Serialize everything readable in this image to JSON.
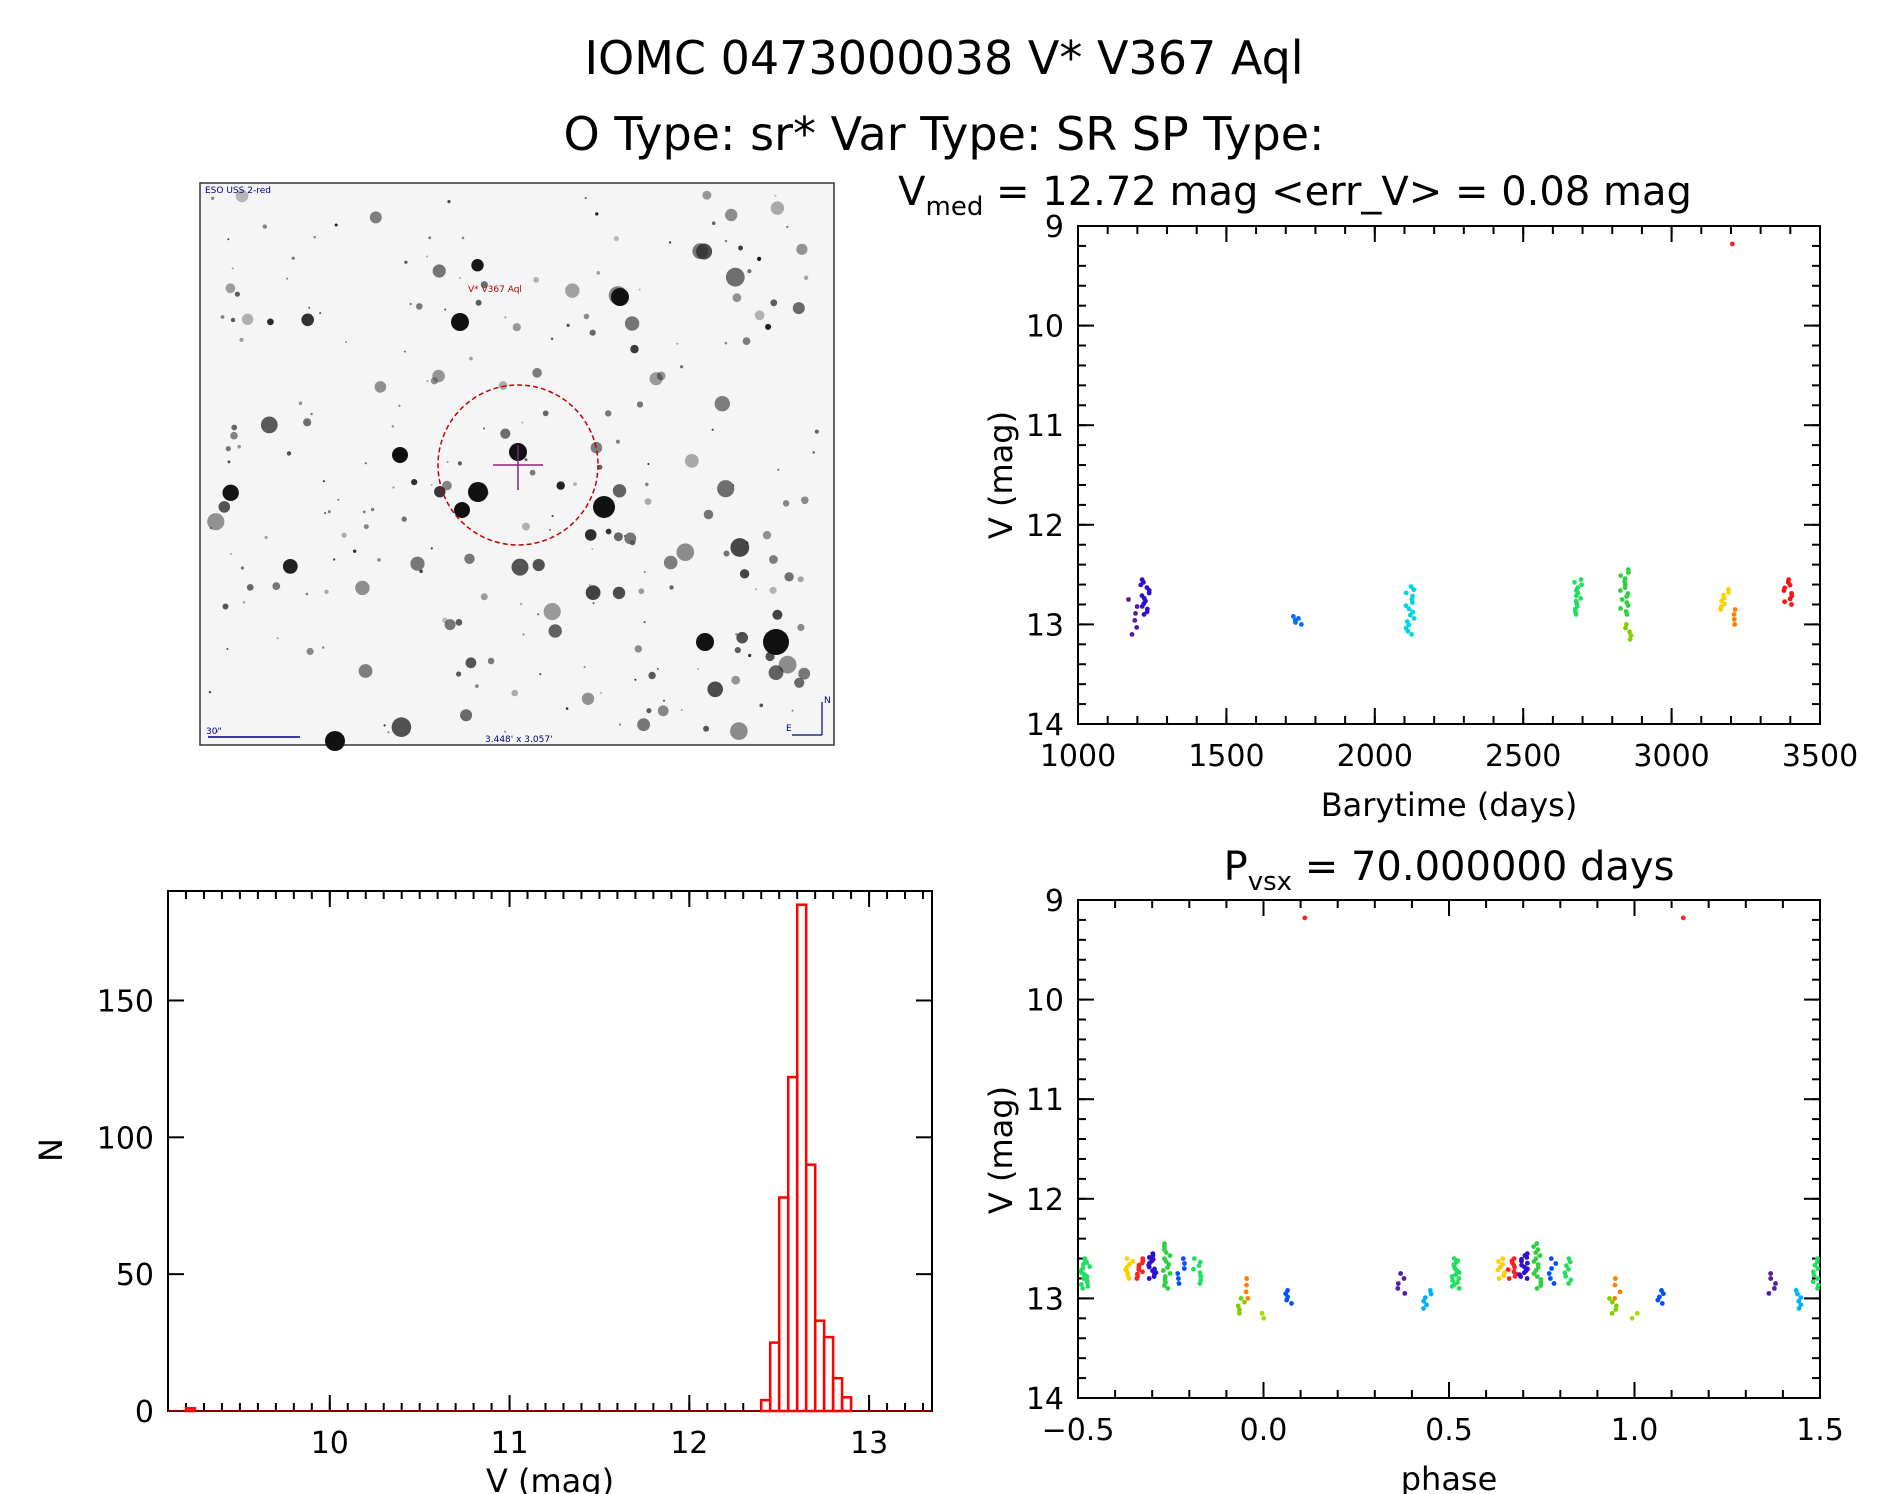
{
  "header": {
    "line1": "IOMC 0473000038    V* V367 Aql",
    "line2": "O Type: sr*  Var Type: SR  SP Type:"
  },
  "image_panel": {
    "survey_label": "ESO USS 2-red",
    "target_label": "V* V367 Aql",
    "scale_label": "30\"",
    "field_label": "3.448' x 3.057'",
    "north_label": "N",
    "east_label": "E"
  },
  "colors": {
    "histogram": "#ff0000",
    "target_circle": "#c00000",
    "crosshair": "#8a2080",
    "overlay_text": "#000080",
    "seasons": [
      "#5a1aa0",
      "#0050ff",
      "#00b0ff",
      "#00e070",
      "#30d040",
      "#ffd000",
      "#ff8000",
      "#ff2020"
    ]
  },
  "chart_data": [
    {
      "id": "light_curve",
      "type": "scatter",
      "title": "V_med = 12.72 mag <err_V> = 0.08 mag",
      "title_parts": {
        "v": "V",
        "v_sub": "med",
        "rest": " = 12.72 mag <err_V> = 0.08 mag"
      },
      "xlabel": "Barytime (days)",
      "ylabel": "V (mag)",
      "xlim": [
        1000,
        3500
      ],
      "ylim": [
        9,
        14
      ],
      "y_inverted": true,
      "xticks": [
        "1000",
        "1500",
        "2000",
        "2500",
        "3000",
        "3500"
      ],
      "yticks": [
        "9",
        "10",
        "11",
        "12",
        "13",
        "14"
      ],
      "groups": [
        {
          "x": 1185,
          "v_min": 12.75,
          "v_max": 13.1,
          "color": "#5a1aa0",
          "n": 6
        },
        {
          "x": 1225,
          "v_min": 12.55,
          "v_max": 12.9,
          "color": "#3010d0",
          "n": 14
        },
        {
          "x": 1740,
          "v_min": 12.92,
          "v_max": 13.0,
          "color": "#0070ff",
          "n": 5
        },
        {
          "x": 2120,
          "v_min": 12.62,
          "v_max": 13.1,
          "color": "#00d8e0",
          "n": 16
        },
        {
          "x": 2685,
          "v_min": 12.55,
          "v_max": 12.9,
          "color": "#20e060",
          "n": 14
        },
        {
          "x": 2840,
          "v_min": 12.45,
          "v_max": 12.9,
          "color": "#30d040",
          "n": 16
        },
        {
          "x": 2850,
          "v_min": 13.0,
          "v_max": 13.15,
          "color": "#80d000",
          "n": 5
        },
        {
          "x": 3180,
          "v_min": 12.65,
          "v_max": 12.85,
          "color": "#ffd000",
          "n": 8
        },
        {
          "x": 3200,
          "v_min": 12.85,
          "v_max": 13.0,
          "color": "#ff8000",
          "n": 4
        },
        {
          "x": 3210,
          "v_min": 9.18,
          "v_max": 9.18,
          "color": "#ff2020",
          "n": 1
        },
        {
          "x": 3390,
          "v_min": 12.55,
          "v_max": 12.8,
          "color": "#ff1010",
          "n": 10
        }
      ]
    },
    {
      "id": "histogram",
      "type": "bar",
      "xlabel": "V (mag)",
      "ylabel": "N",
      "xlim": [
        9.1,
        13.35
      ],
      "ylim": [
        0,
        190
      ],
      "xticks": [
        "10",
        "11",
        "12",
        "13"
      ],
      "yticks": [
        "0",
        "50",
        "100",
        "150"
      ],
      "bin_width": 0.05,
      "bins": [
        {
          "v": 9.2,
          "n": 1
        },
        {
          "v": 12.4,
          "n": 4
        },
        {
          "v": 12.45,
          "n": 25
        },
        {
          "v": 12.5,
          "n": 78
        },
        {
          "v": 12.55,
          "n": 122
        },
        {
          "v": 12.6,
          "n": 185
        },
        {
          "v": 12.65,
          "n": 90
        },
        {
          "v": 12.7,
          "n": 33
        },
        {
          "v": 12.75,
          "n": 27
        },
        {
          "v": 12.8,
          "n": 12
        },
        {
          "v": 12.85,
          "n": 5
        }
      ]
    },
    {
      "id": "phase_curve",
      "type": "scatter",
      "title": "P_vsx = 70.000000 days",
      "title_parts": {
        "p": "P",
        "p_sub": "vsx",
        "rest": " = 70.000000 days"
      },
      "xlabel": "phase",
      "ylabel": "V (mag)",
      "xlim": [
        -0.5,
        1.5
      ],
      "ylim": [
        9,
        14
      ],
      "y_inverted": true,
      "xticks": [
        "−0.5",
        "0.0",
        "0.5",
        "1.0",
        "1.5"
      ],
      "yticks": [
        "9",
        "10",
        "11",
        "12",
        "13",
        "14"
      ],
      "groups": [
        {
          "x": -0.48,
          "v_min": 12.6,
          "v_max": 12.9,
          "color": "#20e060",
          "n": 16
        },
        {
          "x": -0.36,
          "v_min": 12.6,
          "v_max": 12.8,
          "color": "#ffd000",
          "n": 8
        },
        {
          "x": -0.33,
          "v_min": 12.6,
          "v_max": 12.8,
          "color": "#ff2020",
          "n": 10
        },
        {
          "x": -0.3,
          "v_min": 12.55,
          "v_max": 12.8,
          "color": "#3010d0",
          "n": 14
        },
        {
          "x": -0.26,
          "v_min": 12.45,
          "v_max": 12.9,
          "color": "#30d040",
          "n": 16
        },
        {
          "x": -0.22,
          "v_min": 12.6,
          "v_max": 12.85,
          "color": "#0050ff",
          "n": 6
        },
        {
          "x": -0.18,
          "v_min": 12.6,
          "v_max": 12.85,
          "color": "#20e060",
          "n": 8
        },
        {
          "x": -0.05,
          "v_min": 12.8,
          "v_max": 13.0,
          "color": "#ff8000",
          "n": 4
        },
        {
          "x": -0.06,
          "v_min": 13.0,
          "v_max": 13.15,
          "color": "#80d000",
          "n": 5
        },
        {
          "x": 0.0,
          "v_min": 13.15,
          "v_max": 13.2,
          "color": "#a0e000",
          "n": 2
        },
        {
          "x": 0.07,
          "v_min": 12.92,
          "v_max": 13.05,
          "color": "#0050ff",
          "n": 5
        },
        {
          "x": 0.12,
          "v_min": 9.18,
          "v_max": 9.18,
          "color": "#ff2020",
          "n": 1
        },
        {
          "x": 0.37,
          "v_min": 12.75,
          "v_max": 12.95,
          "color": "#5a1aa0",
          "n": 5
        },
        {
          "x": 0.44,
          "v_min": 12.92,
          "v_max": 13.1,
          "color": "#00b0ff",
          "n": 6
        },
        {
          "x": 0.52,
          "v_min": 12.6,
          "v_max": 12.9,
          "color": "#20e060",
          "n": 16
        },
        {
          "x": 0.64,
          "v_min": 12.6,
          "v_max": 12.8,
          "color": "#ffd000",
          "n": 8
        },
        {
          "x": 0.67,
          "v_min": 12.6,
          "v_max": 12.8,
          "color": "#ff2020",
          "n": 10
        },
        {
          "x": 0.7,
          "v_min": 12.55,
          "v_max": 12.8,
          "color": "#3010d0",
          "n": 14
        },
        {
          "x": 0.74,
          "v_min": 12.45,
          "v_max": 12.9,
          "color": "#30d040",
          "n": 16
        },
        {
          "x": 0.78,
          "v_min": 12.6,
          "v_max": 12.85,
          "color": "#0050ff",
          "n": 6
        },
        {
          "x": 0.82,
          "v_min": 12.6,
          "v_max": 12.85,
          "color": "#20e060",
          "n": 8
        },
        {
          "x": 0.95,
          "v_min": 12.8,
          "v_max": 13.0,
          "color": "#ff8000",
          "n": 4
        },
        {
          "x": 0.94,
          "v_min": 13.0,
          "v_max": 13.15,
          "color": "#80d000",
          "n": 5
        },
        {
          "x": 1.0,
          "v_min": 13.15,
          "v_max": 13.2,
          "color": "#a0e000",
          "n": 2
        },
        {
          "x": 1.07,
          "v_min": 12.92,
          "v_max": 13.05,
          "color": "#0050ff",
          "n": 5
        },
        {
          "x": 1.12,
          "v_min": 9.18,
          "v_max": 9.18,
          "color": "#ff2020",
          "n": 1
        },
        {
          "x": 1.37,
          "v_min": 12.75,
          "v_max": 12.95,
          "color": "#5a1aa0",
          "n": 5
        },
        {
          "x": 1.44,
          "v_min": 12.92,
          "v_max": 13.1,
          "color": "#00b0ff",
          "n": 6
        },
        {
          "x": 1.49,
          "v_min": 12.6,
          "v_max": 12.9,
          "color": "#20e060",
          "n": 10
        }
      ]
    }
  ]
}
